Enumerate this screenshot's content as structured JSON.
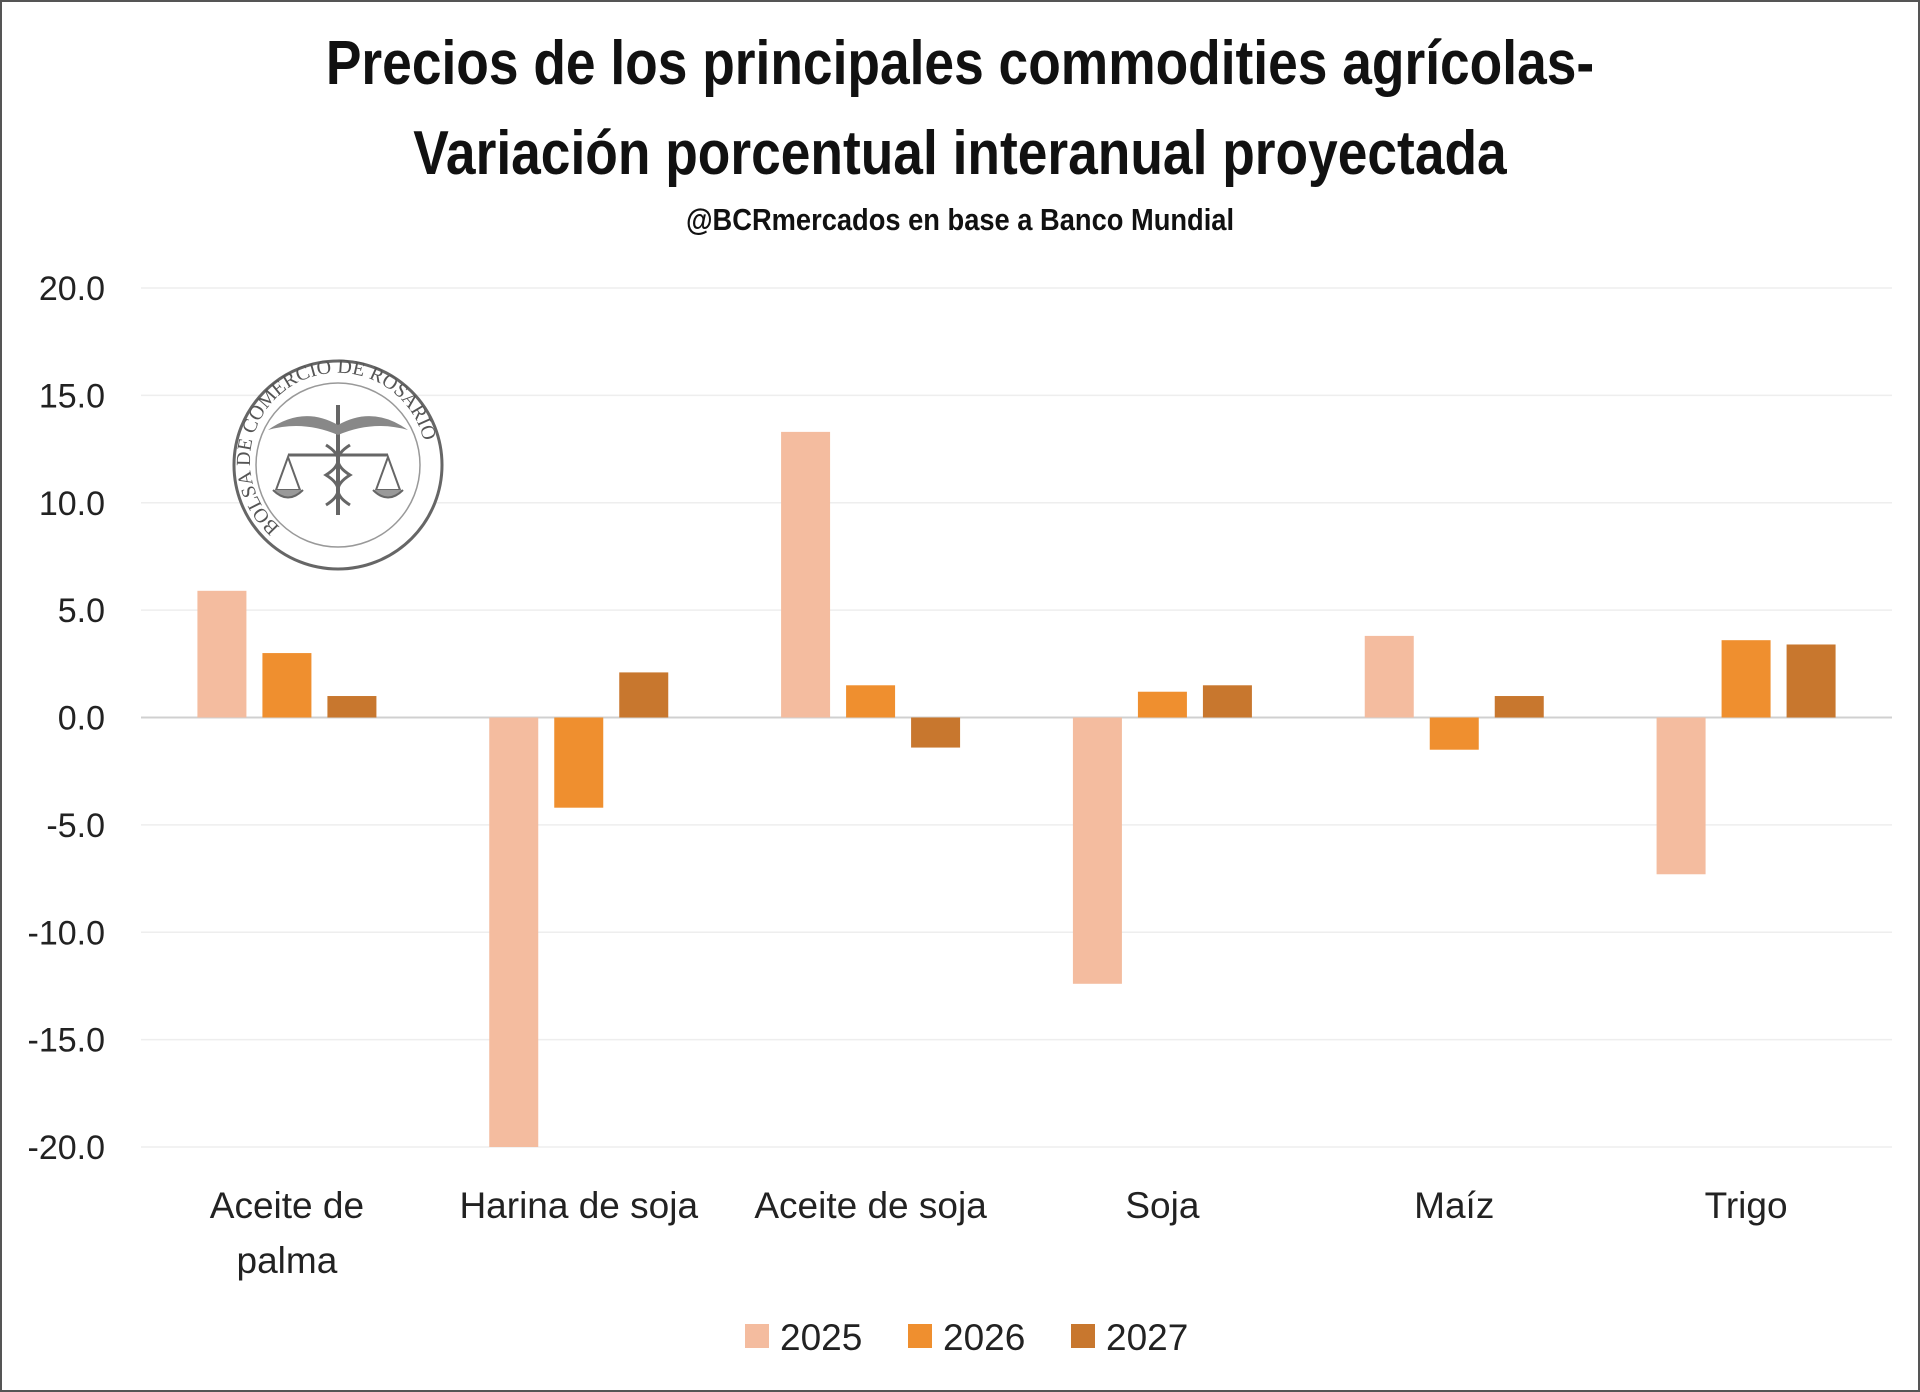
{
  "header": {
    "title_line1": "Precios de los principales commodities agrícolas-",
    "title_line2": "Variación porcentual interanual proyectada",
    "subtitle": "@BCRmercados en base a Banco Mundial"
  },
  "logo": {
    "text": "BOLSA DE COMERCIO DE ROSARIO",
    "icon": "caduceus-scales-seal"
  },
  "chart_data": {
    "type": "bar",
    "title": "Precios de los principales commodities agrícolas- Variación porcentual interanual proyectada",
    "subtitle": "@BCRmercados en base a Banco Mundial",
    "categories": [
      [
        "Aceite de",
        "palma"
      ],
      [
        "Harina de soja"
      ],
      [
        "Aceite de soja"
      ],
      [
        "Soja"
      ],
      [
        "Maíz"
      ],
      [
        "Trigo"
      ]
    ],
    "series": [
      {
        "name": "2025",
        "color": "#F4BC9F",
        "values": [
          5.9,
          -20.0,
          13.3,
          -12.4,
          3.8,
          -7.3
        ]
      },
      {
        "name": "2026",
        "color": "#EF8F2F",
        "values": [
          3.0,
          -4.2,
          1.5,
          1.2,
          -1.5,
          3.6
        ]
      },
      {
        "name": "2027",
        "color": "#C8772E",
        "values": [
          1.0,
          2.1,
          -1.4,
          1.5,
          1.0,
          3.4
        ]
      }
    ],
    "yticks": [
      "20.0",
      "15.0",
      "10.0",
      "5.0",
      "0.0",
      "-5.0",
      "-10.0",
      "-15.0",
      "-20.0"
    ],
    "ylim": [
      -20,
      20
    ],
    "xlabel": "",
    "ylabel": "",
    "grid": true,
    "legend": "bottom"
  }
}
